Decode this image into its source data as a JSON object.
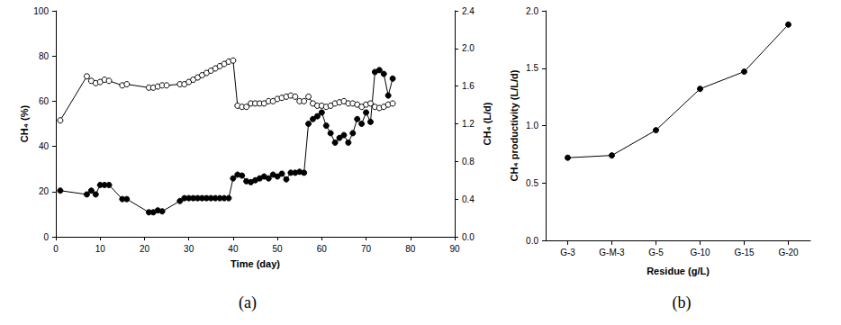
{
  "chart_data": [
    {
      "type": "line",
      "title": "(a)",
      "x_label": "Time (day)",
      "y_label": "CH₄ (%)",
      "y2_label": "CH₄ (L/d)",
      "xlim": [
        0,
        90
      ],
      "xticks": [
        0,
        10,
        20,
        30,
        40,
        50,
        60,
        70,
        80,
        90
      ],
      "ylim": [
        0,
        100
      ],
      "yticks": [
        0,
        20,
        40,
        60,
        80,
        100
      ],
      "y2lim": [
        0,
        2.4
      ],
      "y2ticks": [
        {
          "value": 0,
          "label": "0.0"
        },
        {
          "value": 0.4,
          "label": "0.4"
        },
        {
          "value": 0.8,
          "label": "0.8"
        },
        {
          "value": 1.2,
          "label": "1.2"
        },
        {
          "value": 1.6,
          "label": "1.6"
        },
        {
          "value": 2.0,
          "label": "2.0"
        },
        {
          "value": 2.4,
          "label": "2.4"
        }
      ],
      "grid": false,
      "series": [
        {
          "color": "#000000",
          "marker": "circle-open",
          "line_style": "solid",
          "x": [
            1,
            7,
            8,
            9,
            10,
            11,
            12,
            15,
            16,
            21,
            22,
            23,
            24,
            25,
            28,
            29,
            30,
            31,
            32,
            33,
            34,
            35,
            36,
            37,
            38,
            39,
            40,
            41,
            42,
            43,
            44,
            45,
            46,
            47,
            48,
            49,
            50,
            51,
            52,
            53,
            54,
            55,
            56,
            57,
            58,
            59,
            60,
            61,
            62,
            63,
            64,
            65,
            66,
            67,
            68,
            69,
            70,
            71,
            72,
            73,
            74,
            75,
            76
          ],
          "values": [
            51.5,
            71,
            69,
            68,
            68.5,
            69.5,
            69,
            67,
            67.5,
            66,
            66,
            66.5,
            67,
            67,
            67.5,
            67.5,
            68.5,
            69.5,
            70.5,
            71.5,
            72.5,
            73.5,
            74.5,
            75.5,
            76.5,
            77.5,
            78,
            58,
            57.5,
            57.5,
            59,
            59,
            59,
            59,
            60,
            60,
            61,
            61.5,
            62,
            62.5,
            62,
            60,
            60,
            62,
            59,
            58,
            58,
            57.5,
            58,
            59,
            59.5,
            60,
            59,
            59,
            58.5,
            57.5,
            58.5,
            59,
            57.5,
            57,
            57.5,
            58.5,
            59
          ]
        },
        {
          "color": "#000000",
          "marker": "circle",
          "line_style": "solid",
          "axis": "y2",
          "x": [
            1,
            7,
            8,
            9,
            10,
            11,
            12,
            15,
            16,
            21,
            22,
            23,
            24,
            28,
            29,
            30,
            31,
            32,
            33,
            34,
            35,
            36,
            37,
            38,
            39,
            40,
            41,
            42,
            43,
            44,
            45,
            46,
            47,
            48,
            49,
            50,
            51,
            52,
            53,
            54,
            55,
            56,
            57,
            58,
            59,
            60,
            61,
            62,
            63,
            64,
            65,
            66,
            67,
            68,
            69,
            70,
            71,
            72,
            73,
            74,
            75,
            76
          ],
          "values": [
            0.49,
            0.45,
            0.49,
            0.45,
            0.55,
            0.55,
            0.55,
            0.4,
            0.4,
            0.26,
            0.26,
            0.28,
            0.27,
            0.38,
            0.41,
            0.41,
            0.41,
            0.41,
            0.41,
            0.41,
            0.41,
            0.41,
            0.41,
            0.41,
            0.41,
            0.62,
            0.66,
            0.65,
            0.59,
            0.58,
            0.6,
            0.62,
            0.64,
            0.62,
            0.66,
            0.64,
            0.67,
            0.61,
            0.68,
            0.68,
            0.69,
            0.68,
            1.2,
            1.25,
            1.28,
            1.32,
            1.18,
            1.1,
            1.0,
            1.05,
            1.08,
            1.0,
            1.1,
            1.25,
            1.2,
            1.32,
            1.22,
            1.75,
            1.77,
            1.73,
            1.5,
            1.68
          ]
        }
      ]
    },
    {
      "type": "line",
      "title": "(b)",
      "x_label": "Residue (g/L)",
      "y_label": "CH₄ productivity (L/L/d)",
      "categories": [
        "G-3",
        "G-M-3",
        "G-5",
        "G-10",
        "G-15",
        "G-20"
      ],
      "ylim": [
        0,
        2.0
      ],
      "yticks": [
        {
          "value": 0,
          "label": "0.0"
        },
        {
          "value": 0.5,
          "label": "0.5"
        },
        {
          "value": 1.0,
          "label": "1.0"
        },
        {
          "value": 1.5,
          "label": "1.5"
        },
        {
          "value": 2.0,
          "label": "2.0"
        }
      ],
      "grid": false,
      "series": [
        {
          "color": "#000000",
          "marker": "circle",
          "line_style": "solid",
          "values": [
            0.72,
            0.74,
            0.96,
            1.32,
            1.47,
            1.88
          ]
        }
      ]
    }
  ]
}
